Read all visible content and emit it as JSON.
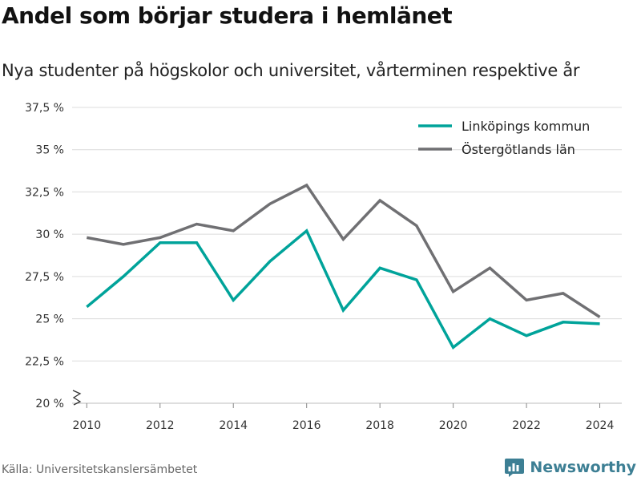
{
  "chart_data": {
    "type": "line",
    "title": "Andel som börjar studera i hemlänet",
    "subtitle": "Nya studenter på högskolor och universitet, vårterminen respektive år",
    "xlabel": "",
    "ylabel": "",
    "x": [
      2010,
      2011,
      2012,
      2013,
      2014,
      2015,
      2016,
      2017,
      2018,
      2019,
      2020,
      2021,
      2022,
      2023,
      2024
    ],
    "x_ticks": [
      2010,
      2012,
      2014,
      2016,
      2018,
      2020,
      2022,
      2024
    ],
    "x_tick_labels": [
      "2010",
      "2012",
      "2014",
      "2016",
      "2018",
      "2020",
      "2022",
      "2024"
    ],
    "ylim": [
      20,
      37.5
    ],
    "y_ticks": [
      20,
      22.5,
      25,
      27.5,
      30,
      32.5,
      35,
      37.5
    ],
    "y_tick_labels": [
      "20 %",
      "22,5 %",
      "25 %",
      "27,5 %",
      "30 %",
      "32,5 %",
      "35 %",
      "37,5 %"
    ],
    "axis_break": true,
    "grid": true,
    "legend_position": "top-right",
    "series": [
      {
        "name": "Linköpings kommun",
        "color": "#00a39a",
        "values": [
          25.7,
          27.5,
          29.5,
          29.5,
          26.1,
          28.4,
          30.2,
          25.5,
          28.0,
          27.3,
          23.3,
          25.0,
          24.0,
          24.8,
          24.7
        ]
      },
      {
        "name": "Östergötlands län",
        "color": "#707073",
        "values": [
          29.8,
          29.4,
          29.8,
          30.6,
          30.2,
          31.8,
          32.9,
          29.7,
          32.0,
          30.5,
          26.6,
          28.0,
          26.1,
          26.5,
          25.1
        ]
      }
    ]
  },
  "footer": {
    "source": "Källa: Universitetskanslersämbetet",
    "brand_name": "Newsworthy",
    "brand_color": "#3d7f94",
    "brand_icon": "newsworthy-logo-icon"
  }
}
